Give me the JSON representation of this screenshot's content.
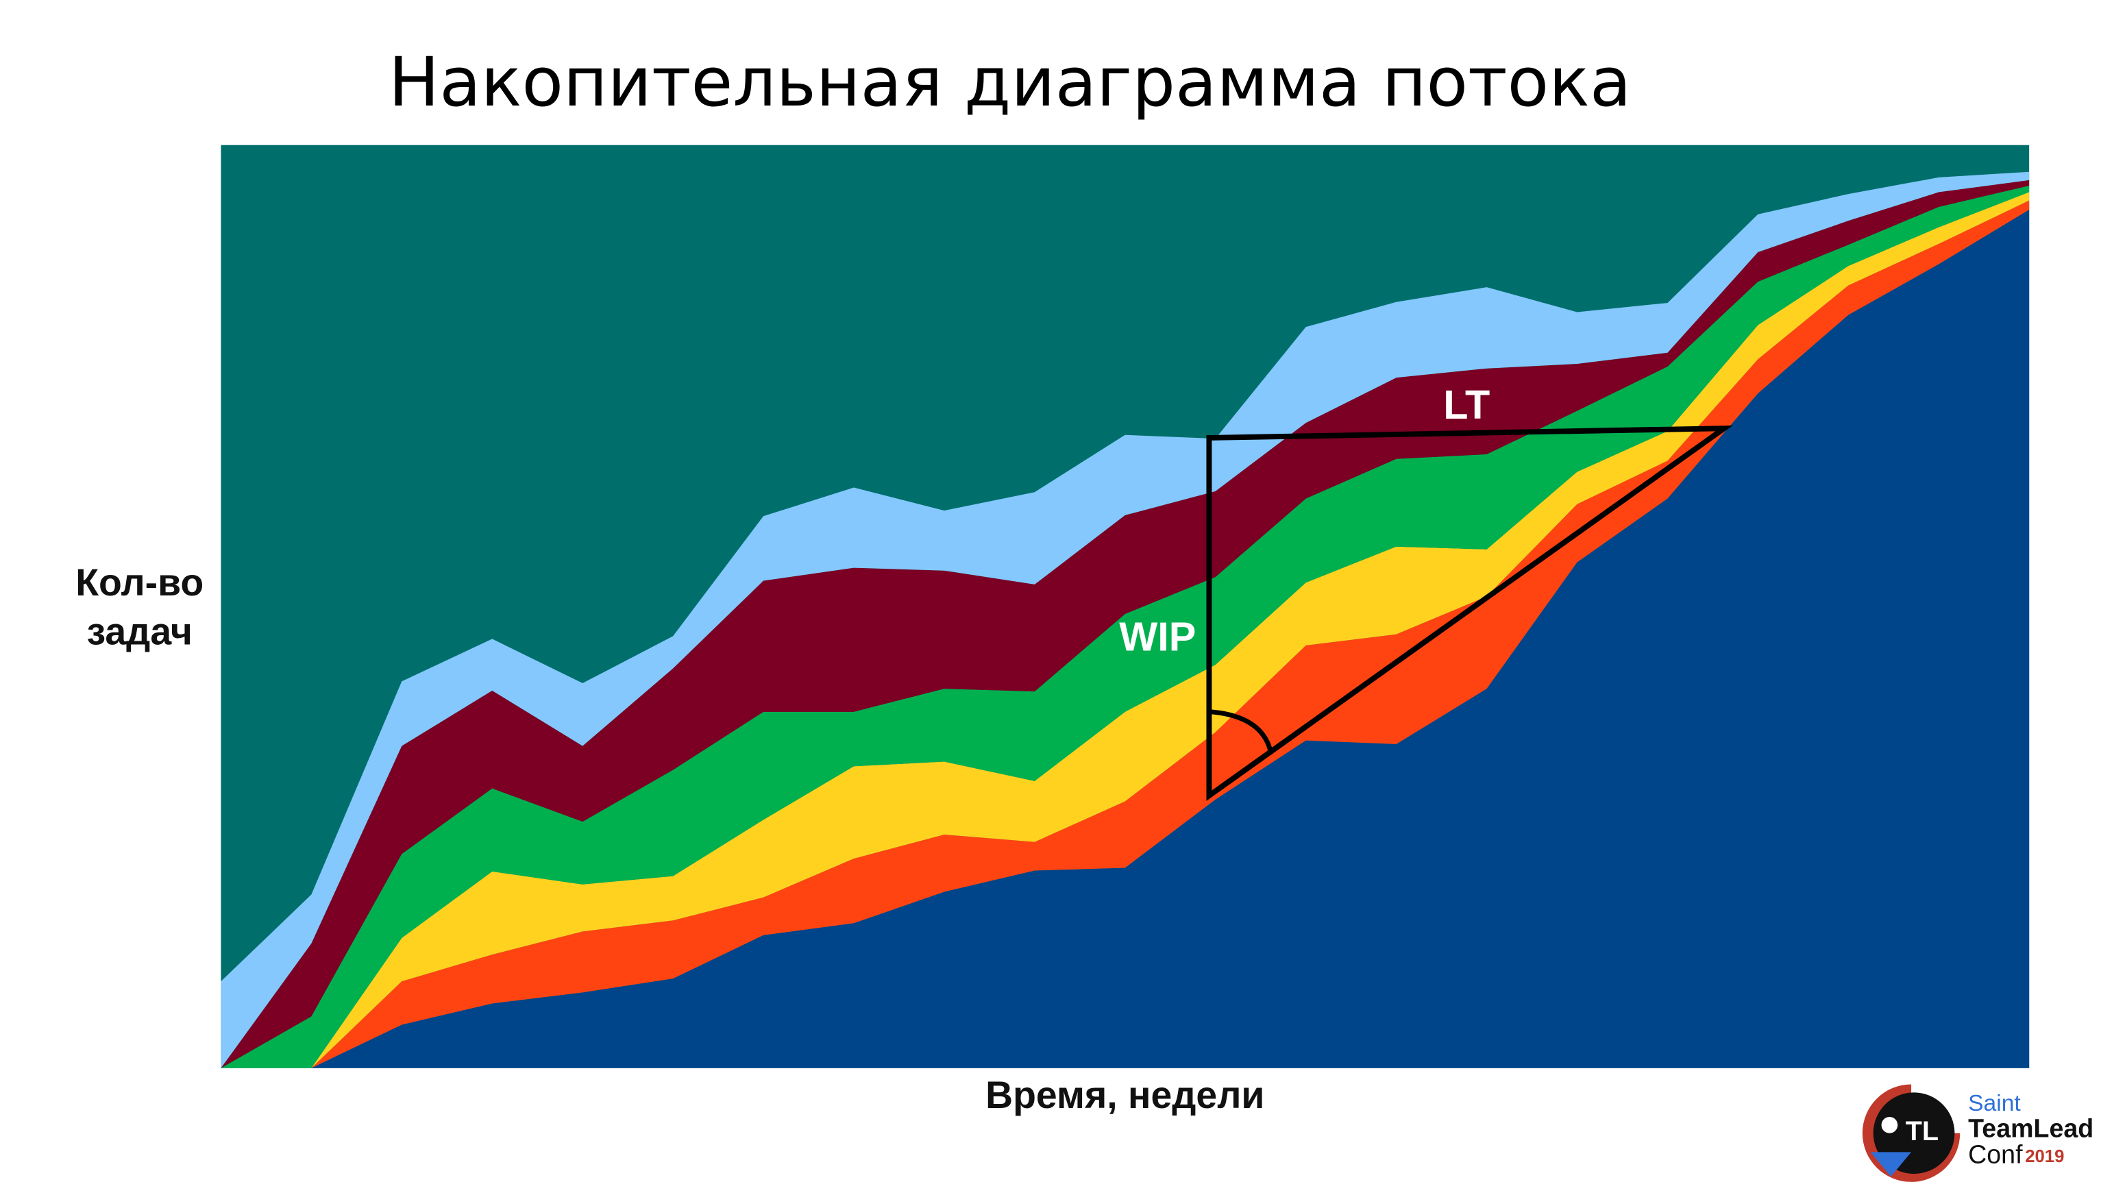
{
  "chart_data": {
    "type": "stacked_area",
    "title": "Накопительная диаграмма потока",
    "x_label": "Время, недели",
    "y_label": [
      "Кол-во",
      "задач"
    ],
    "categories": [
      null,
      null,
      null,
      null,
      null,
      null,
      null,
      null,
      null,
      null,
      null,
      null,
      null,
      null,
      null,
      null,
      null,
      null,
      null,
      null,
      null
    ],
    "ylim": [
      0,
      100
    ],
    "plot_color": "#006f6c",
    "series": [
      {
        "color": "#00448a",
        "values": [
          0,
          0,
          4.7,
          7.0,
          8.2,
          9.7,
          14.4,
          15.7,
          19.1,
          21.4,
          21.7,
          29.1,
          35.5,
          35.1,
          41.1,
          54.8,
          61.7,
          73.1,
          81.6,
          87.1,
          93.0
        ]
      },
      {
        "color": "#ff4411",
        "values": [
          0,
          0,
          4.7,
          5.3,
          6.6,
          6.3,
          4.1,
          7.0,
          6.2,
          3.1,
          7.2,
          7.3,
          10.3,
          11.9,
          10.0,
          6.3,
          4.1,
          3.7,
          3.2,
          2.2,
          1.0
        ]
      },
      {
        "color": "#ffd21f",
        "values": [
          0,
          0,
          4.7,
          9.0,
          5.1,
          4.8,
          8.4,
          10.0,
          7.9,
          6.6,
          9.7,
          7.3,
          6.8,
          9.5,
          5.1,
          3.5,
          3.2,
          3.7,
          2.1,
          1.8,
          0.9
        ]
      },
      {
        "color": "#00b04f",
        "values": [
          0,
          5.6,
          9.1,
          9.0,
          6.8,
          11.5,
          11.7,
          5.9,
          7.9,
          9.7,
          10.6,
          9.5,
          9.1,
          9.5,
          10.3,
          6.6,
          7.0,
          4.7,
          2.3,
          2.2,
          0.7
        ]
      },
      {
        "color": "#7b0023",
        "values": [
          0,
          7.9,
          11.7,
          10.6,
          8.2,
          11.0,
          14.2,
          15.6,
          12.8,
          11.6,
          10.7,
          9.3,
          8.2,
          8.8,
          9.3,
          5.1,
          1.5,
          3.2,
          2.6,
          1.6,
          0.6
        ]
      },
      {
        "color": "#84c8fd",
        "values": [
          9.4,
          5.3,
          7.0,
          5.6,
          6.8,
          3.5,
          7.0,
          8.7,
          6.5,
          10.0,
          8.7,
          5.7,
          10.4,
          8.2,
          8.8,
          5.6,
          5.4,
          4.1,
          2.9,
          1.6,
          0.9
        ]
      }
    ],
    "annotations": [
      "LT",
      "WIP"
    ]
  },
  "logo": {
    "line1": "Saint",
    "line2": "TeamLead",
    "line3": "Conf",
    "year": "2019"
  }
}
